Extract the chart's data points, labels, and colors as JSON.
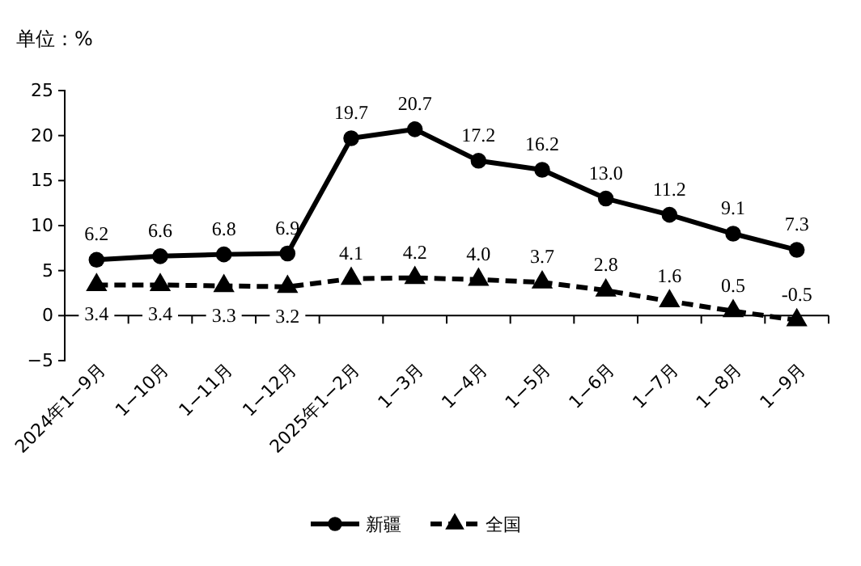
{
  "chart_data": {
    "type": "line",
    "ylabel": "单位：%",
    "categories": [
      "2024年1−9月",
      "1−10月",
      "1−11月",
      "1−12月",
      "2025年1−2月",
      "1−3月",
      "1−4月",
      "1−5月",
      "1−6月",
      "1−7月",
      "1−8月",
      "1−9月"
    ],
    "series": [
      {
        "name": "新疆",
        "color": "#000000",
        "marker": "circle",
        "line_style": "solid",
        "values": [
          6.2,
          6.6,
          6.8,
          6.9,
          19.7,
          20.7,
          17.2,
          16.2,
          13.0,
          11.2,
          9.1,
          7.3
        ],
        "value_labels": [
          "6.2",
          "6.6",
          "6.8",
          "6.9",
          "19.7",
          "20.7",
          "17.2",
          "16.2",
          "13.0",
          "11.2",
          "9.1",
          "7.3"
        ]
      },
      {
        "name": "全国",
        "color": "#000000",
        "marker": "triangle",
        "line_style": "dashed",
        "values": [
          3.4,
          3.4,
          3.3,
          3.2,
          4.1,
          4.2,
          4.0,
          3.7,
          2.8,
          1.6,
          0.5,
          -0.5
        ],
        "value_labels": [
          "3.4",
          "3.4",
          "3.3",
          "3.2",
          "4.1",
          "4.2",
          "4.0",
          "3.7",
          "2.8",
          "1.6",
          "0.5",
          "-0.5"
        ]
      }
    ],
    "ylim": [
      -5,
      25
    ],
    "yticks": [
      -5,
      0,
      5,
      10,
      15,
      20,
      25
    ],
    "legend": "bottom",
    "grid": false
  }
}
